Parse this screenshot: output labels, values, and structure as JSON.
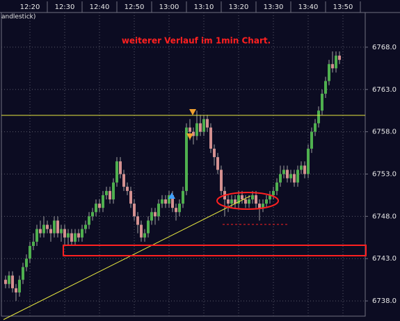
{
  "chart_data": {
    "type": "candlestick",
    "title": "weiterer Verlauf im 1min Chart.",
    "label": "andlestick)",
    "x": [
      733,
      734,
      735,
      736,
      737,
      738,
      739,
      740,
      741,
      742,
      743,
      744,
      745,
      746,
      747,
      748,
      749,
      750,
      751,
      752,
      753,
      754,
      755,
      756,
      757,
      758,
      759,
      760,
      761,
      762,
      763,
      764,
      765,
      766,
      767,
      768,
      769,
      770,
      771,
      772,
      773,
      774,
      775,
      776,
      777,
      778,
      779,
      780,
      781,
      782,
      783,
      784,
      785,
      786,
      787,
      788,
      789,
      790,
      791,
      792,
      793,
      794,
      795,
      796,
      797,
      798,
      799,
      800,
      801,
      802,
      803,
      804,
      805,
      806,
      807,
      808,
      809,
      810,
      811,
      812,
      813,
      814,
      815,
      816,
      817,
      818,
      819,
      820,
      821,
      822,
      823,
      824,
      825,
      826,
      827,
      828,
      829
    ],
    "open": [
      6740.5,
      6740,
      6741,
      6739.5,
      6739,
      6740.5,
      6742,
      6743,
      6744.5,
      6745,
      6746.5,
      6746,
      6747,
      6746.5,
      6746,
      6747.5,
      6746,
      6746.5,
      6745.5,
      6746,
      6745,
      6746,
      6745.5,
      6746.5,
      6747,
      6748,
      6748.5,
      6749.5,
      6749,
      6750.5,
      6751,
      6750,
      6752,
      6754.5,
      6753,
      6751.5,
      6751,
      6749.5,
      6748,
      6747,
      6745.5,
      6746,
      6747.5,
      6748.5,
      6748,
      6749.5,
      6750,
      6749.5,
      6750.5,
      6749,
      6748.5,
      6749.5,
      6751,
      6758.5,
      6758,
      6757.5,
      6759,
      6758,
      6759.5,
      6758.5,
      6756,
      6755,
      6753.5,
      6751,
      6750,
      6749.5,
      6750,
      6749.5,
      6750.5,
      6750,
      6749.5,
      6750,
      6750.5,
      6749.5,
      6749,
      6749.5,
      6750,
      6750.5,
      6751,
      6752,
      6753,
      6753.5,
      6752.5,
      6753,
      6752,
      6753.5,
      6754,
      6753,
      6756,
      6758,
      6759,
      6760.5,
      6762.5,
      6764,
      6766,
      6765.5,
      6767
    ],
    "high": [
      6741,
      6741.5,
      6741.5,
      6740,
      6741,
      6742.5,
      6743.5,
      6745,
      6746,
      6747,
      6747.5,
      6748,
      6747.5,
      6747,
      6748,
      6748,
      6747,
      6747,
      6746.5,
      6746.5,
      6746.5,
      6746.5,
      6747,
      6747.5,
      6748.5,
      6749,
      6750,
      6750,
      6751,
      6751.5,
      6751.5,
      6752.5,
      6755,
      6755,
      6753.5,
      6752,
      6751.5,
      6750,
      6748.5,
      6747.5,
      6746.5,
      6748,
      6749,
      6749,
      6750,
      6750.5,
      6750.5,
      6751,
      6751,
      6749.5,
      6750,
      6751.5,
      6759,
      6759.5,
      6758.5,
      6760.5,
      6760,
      6760,
      6760,
      6759,
      6756.5,
      6755.5,
      6754,
      6751.5,
      6750.5,
      6750.5,
      6750.5,
      6751,
      6751,
      6750.5,
      6750.5,
      6751,
      6751,
      6750,
      6750,
      6750.5,
      6751,
      6751.5,
      6752.5,
      6754,
      6754,
      6754,
      6753.5,
      6753.5,
      6754,
      6754.5,
      6754.5,
      6756.5,
      6758.5,
      6759.5,
      6761,
      6763,
      6764.5,
      6766.5,
      6767.5,
      6767.5,
      6767.5
    ],
    "low": [
      6739.5,
      6739.5,
      6739,
      6738,
      6738.5,
      6740,
      6741.5,
      6742.5,
      6744,
      6744.5,
      6745.5,
      6745.5,
      6746,
      6745,
      6745.5,
      6745.5,
      6745,
      6744.5,
      6744.5,
      6744.5,
      6744.5,
      6745,
      6745,
      6746,
      6746.5,
      6747.5,
      6748,
      6748.5,
      6748.5,
      6750,
      6749.5,
      6749.5,
      6751.5,
      6752.5,
      6751,
      6750.5,
      6749,
      6747.5,
      6746,
      6745,
      6745,
      6745.5,
      6747,
      6747,
      6747.5,
      6749,
      6749,
      6749,
      6748.5,
      6747.5,
      6748,
      6749,
      6750.5,
      6757,
      6756.5,
      6757,
      6757.5,
      6757.5,
      6758,
      6755.5,
      6754,
      6753,
      6750.5,
      6748,
      6748.5,
      6749,
      6749,
      6749,
      6749.5,
      6749,
      6749,
      6749.5,
      6749,
      6747.5,
      6748.5,
      6749,
      6749.5,
      6750,
      6750.5,
      6751.5,
      6752.5,
      6752,
      6752,
      6751.5,
      6751.5,
      6753,
      6752.5,
      6752.5,
      6755.5,
      6757.5,
      6758.5,
      6760,
      6762,
      6763.5,
      6765,
      6765,
      6766
    ],
    "close": [
      6740,
      6741,
      6739.5,
      6739,
      6740.5,
      6742,
      6743,
      6744.5,
      6745,
      6746.5,
      6746,
      6747,
      6746.5,
      6746,
      6747.5,
      6746,
      6746.5,
      6745.5,
      6746,
      6745,
      6746,
      6745.5,
      6746.5,
      6747,
      6748,
      6748.5,
      6749.5,
      6749,
      6750.5,
      6751,
      6750,
      6752,
      6754.5,
      6753,
      6751.5,
      6751,
      6749.5,
      6748,
      6747,
      6745.5,
      6746,
      6747.5,
      6748.5,
      6748,
      6749.5,
      6750,
      6749.5,
      6750.5,
      6749,
      6748.5,
      6749.5,
      6751,
      6758.5,
      6758,
      6757.5,
      6759,
      6758,
      6759.5,
      6758.5,
      6756,
      6755,
      6753.5,
      6751,
      6750,
      6749.5,
      6750,
      6749.5,
      6750.5,
      6750,
      6749.5,
      6750,
      6750.5,
      6749.5,
      6749,
      6749.5,
      6750,
      6750.5,
      6751,
      6752,
      6753,
      6753.5,
      6752.5,
      6753,
      6752,
      6753.5,
      6754,
      6753,
      6756,
      6758,
      6759,
      6760.5,
      6762.5,
      6764,
      6766,
      6765.5,
      6767,
      6766.5
    ],
    "up_color": "#4fb04f",
    "down_color": "#d49090",
    "wick_color": "#a0a0a0",
    "xlim": [
      731.8,
      836.4
    ],
    "xticks": [
      {
        "value": 740,
        "label": "12:20"
      },
      {
        "value": 750,
        "label": "12:30"
      },
      {
        "value": 760,
        "label": "12:40"
      },
      {
        "value": 770,
        "label": "12:50"
      },
      {
        "value": 780,
        "label": "13:00"
      },
      {
        "value": 790,
        "label": "13:10"
      },
      {
        "value": 800,
        "label": "13:20"
      },
      {
        "value": 810,
        "label": "13:30"
      },
      {
        "value": 820,
        "label": "13:40"
      },
      {
        "value": 830,
        "label": "13:50"
      }
    ],
    "ylim": [
      6736.2,
      6772.1
    ],
    "yticks": [
      {
        "value": 6738,
        "label": "6738.0"
      },
      {
        "value": 6743,
        "label": "6743.0"
      },
      {
        "value": 6748,
        "label": "6748.0"
      },
      {
        "value": 6753,
        "label": "6753.0"
      },
      {
        "value": 6758,
        "label": "6758.0"
      },
      {
        "value": 6763,
        "label": "6763.0"
      },
      {
        "value": 6768,
        "label": "6768.0"
      }
    ],
    "grid": true
  }
}
